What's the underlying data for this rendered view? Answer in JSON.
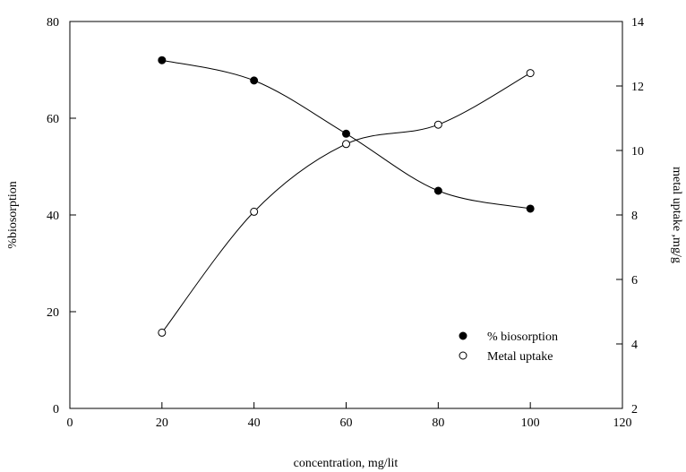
{
  "chart_data": {
    "type": "line",
    "title": "",
    "xlabel": "concentration, mg/lit",
    "ylabel": "%biosorption",
    "y2label": "metal uptake ,mg/g",
    "xlim": [
      0,
      120
    ],
    "ylim": [
      0,
      80
    ],
    "y2lim": [
      2,
      14
    ],
    "xticks": [
      0,
      20,
      40,
      60,
      80,
      100,
      120
    ],
    "yticks": [
      0,
      20,
      40,
      60,
      80
    ],
    "y2ticks": [
      2,
      4,
      6,
      8,
      10,
      12,
      14
    ],
    "grid": false,
    "legend_position": "bottom-right",
    "series": [
      {
        "name": "% biosorption",
        "axis": "left",
        "marker": "filled-circle",
        "x": [
          20,
          40,
          60,
          80,
          100
        ],
        "values": [
          72,
          67.8,
          56.8,
          45,
          41.3
        ]
      },
      {
        "name": "Metal uptake",
        "axis": "right",
        "marker": "open-circle",
        "x": [
          20,
          40,
          60,
          80,
          100
        ],
        "values": [
          4.35,
          8.1,
          10.2,
          10.8,
          12.4
        ]
      }
    ],
    "colors": {
      "line": "#000000",
      "marker_fill": "#000000",
      "open_fill": "#ffffff"
    }
  }
}
